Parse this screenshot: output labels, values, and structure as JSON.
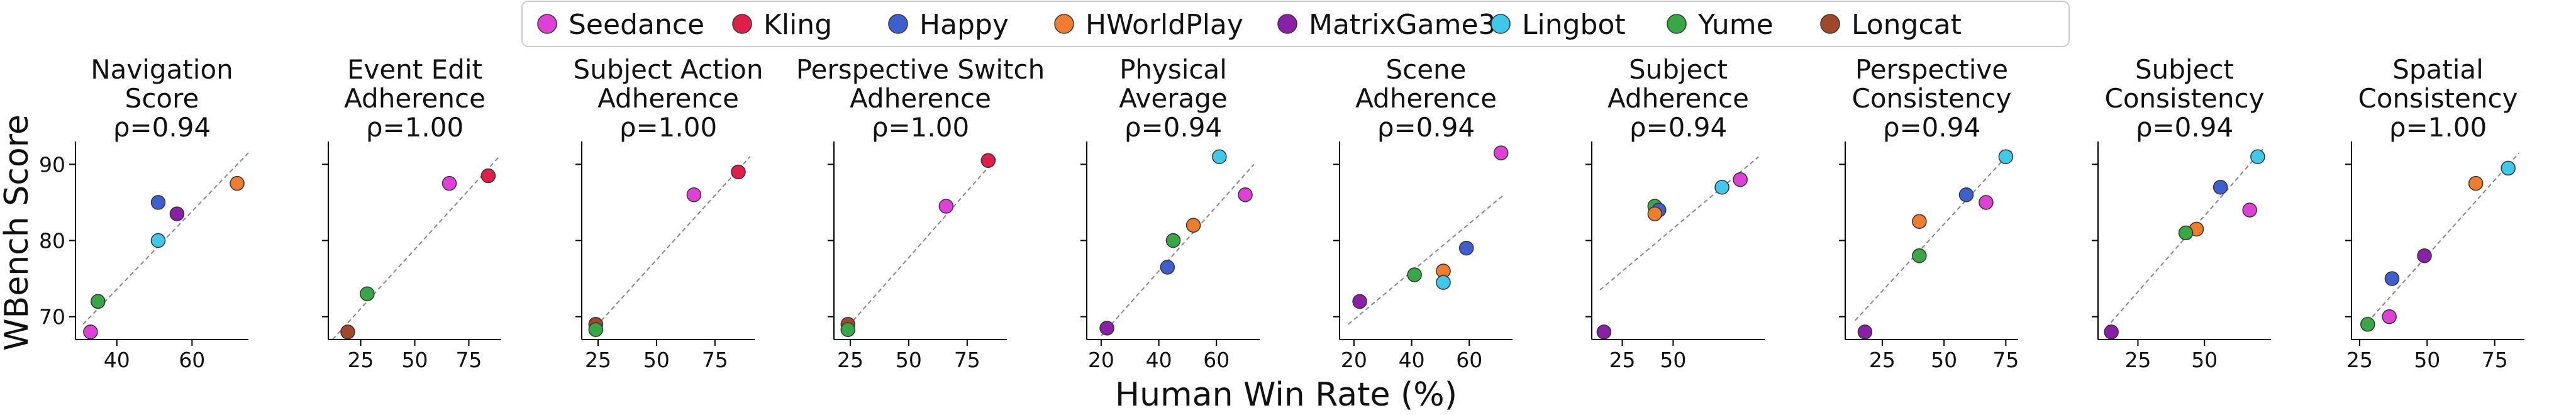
{
  "figure": {
    "ylabel": "WBench Score",
    "xlabel": "Human Win Rate (%)"
  },
  "legend": {
    "placement": "top-center",
    "entries": [
      {
        "name": "Seedance",
        "color": "#e040d8"
      },
      {
        "name": "Kling",
        "color": "#dd1f4a"
      },
      {
        "name": "Happy",
        "color": "#3f5fcf"
      },
      {
        "name": "HWorldPlay",
        "color": "#ef7d2e"
      },
      {
        "name": "MatrixGame3",
        "color": "#8a1fa8"
      },
      {
        "name": "Lingbot",
        "color": "#3ec8ea"
      },
      {
        "name": "Yume",
        "color": "#38a844"
      },
      {
        "name": "Longcat",
        "color": "#a0482a"
      }
    ]
  },
  "chart_data": [
    {
      "type": "scatter",
      "title": [
        "Navigation",
        "Score"
      ],
      "rho": "ρ=0.94",
      "xlim": [
        29,
        75
      ],
      "ylim": [
        67,
        93
      ],
      "xticks": [
        40,
        60
      ],
      "yticks": [
        70,
        80,
        90
      ],
      "yticklabels": [
        "70",
        "80",
        "90"
      ],
      "fit": [
        [
          31,
          69
        ],
        [
          75,
          91.5
        ]
      ],
      "points": [
        {
          "series": "HWorldPlay",
          "x": 72,
          "y": 87.5
        },
        {
          "series": "Happy",
          "x": 51,
          "y": 85
        },
        {
          "series": "MatrixGame3",
          "x": 56,
          "y": 83.5
        },
        {
          "series": "Lingbot",
          "x": 51,
          "y": 80
        },
        {
          "series": "Yume",
          "x": 35,
          "y": 72
        },
        {
          "series": "Seedance",
          "x": 33,
          "y": 68
        }
      ]
    },
    {
      "type": "scatter",
      "title": [
        "Event Edit",
        "Adherence"
      ],
      "rho": "ρ=1.00",
      "xlim": [
        10,
        90
      ],
      "ylim": [
        67,
        93
      ],
      "xticks": [
        25,
        50,
        75
      ],
      "yticks": [
        70,
        80,
        90
      ],
      "yticklabels": [],
      "fit": [
        [
          12,
          67
        ],
        [
          89,
          91
        ]
      ],
      "points": [
        {
          "series": "Kling",
          "x": 84,
          "y": 88.5
        },
        {
          "series": "Seedance",
          "x": 66,
          "y": 87.5
        },
        {
          "series": "Yume",
          "x": 28,
          "y": 73
        },
        {
          "series": "Longcat",
          "x": 19,
          "y": 68
        }
      ]
    },
    {
      "type": "scatter",
      "title": [
        "Subject Action",
        "Adherence"
      ],
      "rho": "ρ=1.00",
      "xlim": [
        18,
        92
      ],
      "ylim": [
        67,
        93
      ],
      "xticks": [
        25,
        50,
        75
      ],
      "yticks": [
        70,
        80,
        90
      ],
      "yticklabels": [],
      "fit": [
        [
          22,
          68
        ],
        [
          90,
          91
        ]
      ],
      "points": [
        {
          "series": "Kling",
          "x": 85,
          "y": 89
        },
        {
          "series": "Seedance",
          "x": 66,
          "y": 86
        },
        {
          "series": "Longcat",
          "x": 24,
          "y": 69
        },
        {
          "series": "Yume",
          "x": 24,
          "y": 68.3
        }
      ]
    },
    {
      "type": "scatter",
      "title": [
        "Perspective Switch",
        "Adherence"
      ],
      "rho": "ρ=1.00",
      "xlim": [
        18,
        92
      ],
      "ylim": [
        67,
        93
      ],
      "xticks": [
        25,
        50,
        75
      ],
      "yticks": [
        70,
        80,
        90
      ],
      "yticklabels": [],
      "fit": [
        [
          22,
          68
        ],
        [
          88,
          91
        ]
      ],
      "points": [
        {
          "series": "Kling",
          "x": 84,
          "y": 90.5
        },
        {
          "series": "Seedance",
          "x": 66,
          "y": 84.5
        },
        {
          "series": "Longcat",
          "x": 24,
          "y": 69
        },
        {
          "series": "Yume",
          "x": 24,
          "y": 68.3
        }
      ]
    },
    {
      "type": "scatter",
      "title": [
        "Physical",
        "Average"
      ],
      "rho": "ρ=0.94",
      "xlim": [
        15,
        75
      ],
      "ylim": [
        67,
        93
      ],
      "xticks": [
        20,
        40,
        60
      ],
      "yticks": [
        70,
        80,
        90
      ],
      "yticklabels": [],
      "fit": [
        [
          20,
          67.5
        ],
        [
          73,
          90
        ]
      ],
      "points": [
        {
          "series": "Lingbot",
          "x": 61,
          "y": 91
        },
        {
          "series": "Seedance",
          "x": 70,
          "y": 86
        },
        {
          "series": "HWorldPlay",
          "x": 52,
          "y": 82
        },
        {
          "series": "Yume",
          "x": 45,
          "y": 80
        },
        {
          "series": "Happy",
          "x": 43,
          "y": 76.5
        },
        {
          "series": "MatrixGame3",
          "x": 22,
          "y": 68.5
        }
      ]
    },
    {
      "type": "scatter",
      "title": [
        "Scene",
        "Adherence"
      ],
      "rho": "ρ=0.94",
      "xlim": [
        15,
        75
      ],
      "ylim": [
        67,
        93
      ],
      "xticks": [
        20,
        40,
        60
      ],
      "yticks": [
        70,
        80,
        90
      ],
      "yticklabels": [],
      "fit": [
        [
          18,
          69
        ],
        [
          72,
          86
        ]
      ],
      "points": [
        {
          "series": "Seedance",
          "x": 71,
          "y": 91.5
        },
        {
          "series": "Happy",
          "x": 59,
          "y": 79
        },
        {
          "series": "HWorldPlay",
          "x": 51,
          "y": 76
        },
        {
          "series": "Yume",
          "x": 41,
          "y": 75.5
        },
        {
          "series": "Lingbot",
          "x": 51,
          "y": 74.5
        },
        {
          "series": "MatrixGame3",
          "x": 22,
          "y": 72
        }
      ]
    },
    {
      "type": "scatter",
      "title": [
        "Subject",
        "Adherence"
      ],
      "rho": "ρ=0.94",
      "xlim": [
        10,
        95
      ],
      "ylim": [
        67,
        93
      ],
      "xticks": [
        25,
        50
      ],
      "yticks": [
        70,
        80,
        90
      ],
      "yticklabels": [],
      "fit": [
        [
          14,
          73.5
        ],
        [
          92,
          91
        ]
      ],
      "points": [
        {
          "series": "Seedance",
          "x": 83,
          "y": 88
        },
        {
          "series": "Lingbot",
          "x": 74,
          "y": 87
        },
        {
          "series": "Yume",
          "x": 41,
          "y": 84.5
        },
        {
          "series": "Happy",
          "x": 43,
          "y": 84
        },
        {
          "series": "HWorldPlay",
          "x": 41,
          "y": 83.5
        },
        {
          "series": "MatrixGame3",
          "x": 16,
          "y": 68
        }
      ]
    },
    {
      "type": "scatter",
      "title": [
        "Perspective",
        "Consistency"
      ],
      "rho": "ρ=0.94",
      "xlim": [
        10,
        80
      ],
      "ylim": [
        67,
        93
      ],
      "xticks": [
        25,
        50,
        75
      ],
      "yticks": [
        70,
        80,
        90
      ],
      "yticklabels": [],
      "fit": [
        [
          14,
          69.5
        ],
        [
          78,
          92
        ]
      ],
      "points": [
        {
          "series": "Lingbot",
          "x": 75,
          "y": 91
        },
        {
          "series": "Happy",
          "x": 59,
          "y": 86
        },
        {
          "series": "Seedance",
          "x": 67,
          "y": 85
        },
        {
          "series": "HWorldPlay",
          "x": 40,
          "y": 82.5
        },
        {
          "series": "Yume",
          "x": 40,
          "y": 78
        },
        {
          "series": "MatrixGame3",
          "x": 18,
          "y": 68
        }
      ]
    },
    {
      "type": "scatter",
      "title": [
        "Subject",
        "Consistency"
      ],
      "rho": "ρ=0.94",
      "xlim": [
        10,
        75
      ],
      "ylim": [
        67,
        93
      ],
      "xticks": [
        25,
        50
      ],
      "yticks": [
        70,
        80,
        90
      ],
      "yticklabels": [],
      "fit": [
        [
          13,
          68.5
        ],
        [
          72,
          92
        ]
      ],
      "points": [
        {
          "series": "Lingbot",
          "x": 70,
          "y": 91
        },
        {
          "series": "Happy",
          "x": 56,
          "y": 87
        },
        {
          "series": "Seedance",
          "x": 67,
          "y": 84
        },
        {
          "series": "HWorldPlay",
          "x": 47,
          "y": 81.5
        },
        {
          "series": "Yume",
          "x": 43,
          "y": 81
        },
        {
          "series": "MatrixGame3",
          "x": 15,
          "y": 68
        }
      ]
    },
    {
      "type": "scatter",
      "title": [
        "Spatial",
        "Consistency"
      ],
      "rho": "ρ=1.00",
      "xlim": [
        22,
        86
      ],
      "ylim": [
        67,
        93
      ],
      "xticks": [
        25,
        50,
        75
      ],
      "yticks": [
        70,
        80,
        90
      ],
      "yticklabels": [],
      "fit": [
        [
          26,
          68.5
        ],
        [
          84,
          91.5
        ]
      ],
      "points": [
        {
          "series": "Lingbot",
          "x": 80,
          "y": 89.5
        },
        {
          "series": "HWorldPlay",
          "x": 68,
          "y": 87.5
        },
        {
          "series": "MatrixGame3",
          "x": 49,
          "y": 78
        },
        {
          "series": "Happy",
          "x": 37,
          "y": 75
        },
        {
          "series": "Seedance",
          "x": 36,
          "y": 70
        },
        {
          "series": "Yume",
          "x": 28,
          "y": 69
        }
      ]
    }
  ]
}
